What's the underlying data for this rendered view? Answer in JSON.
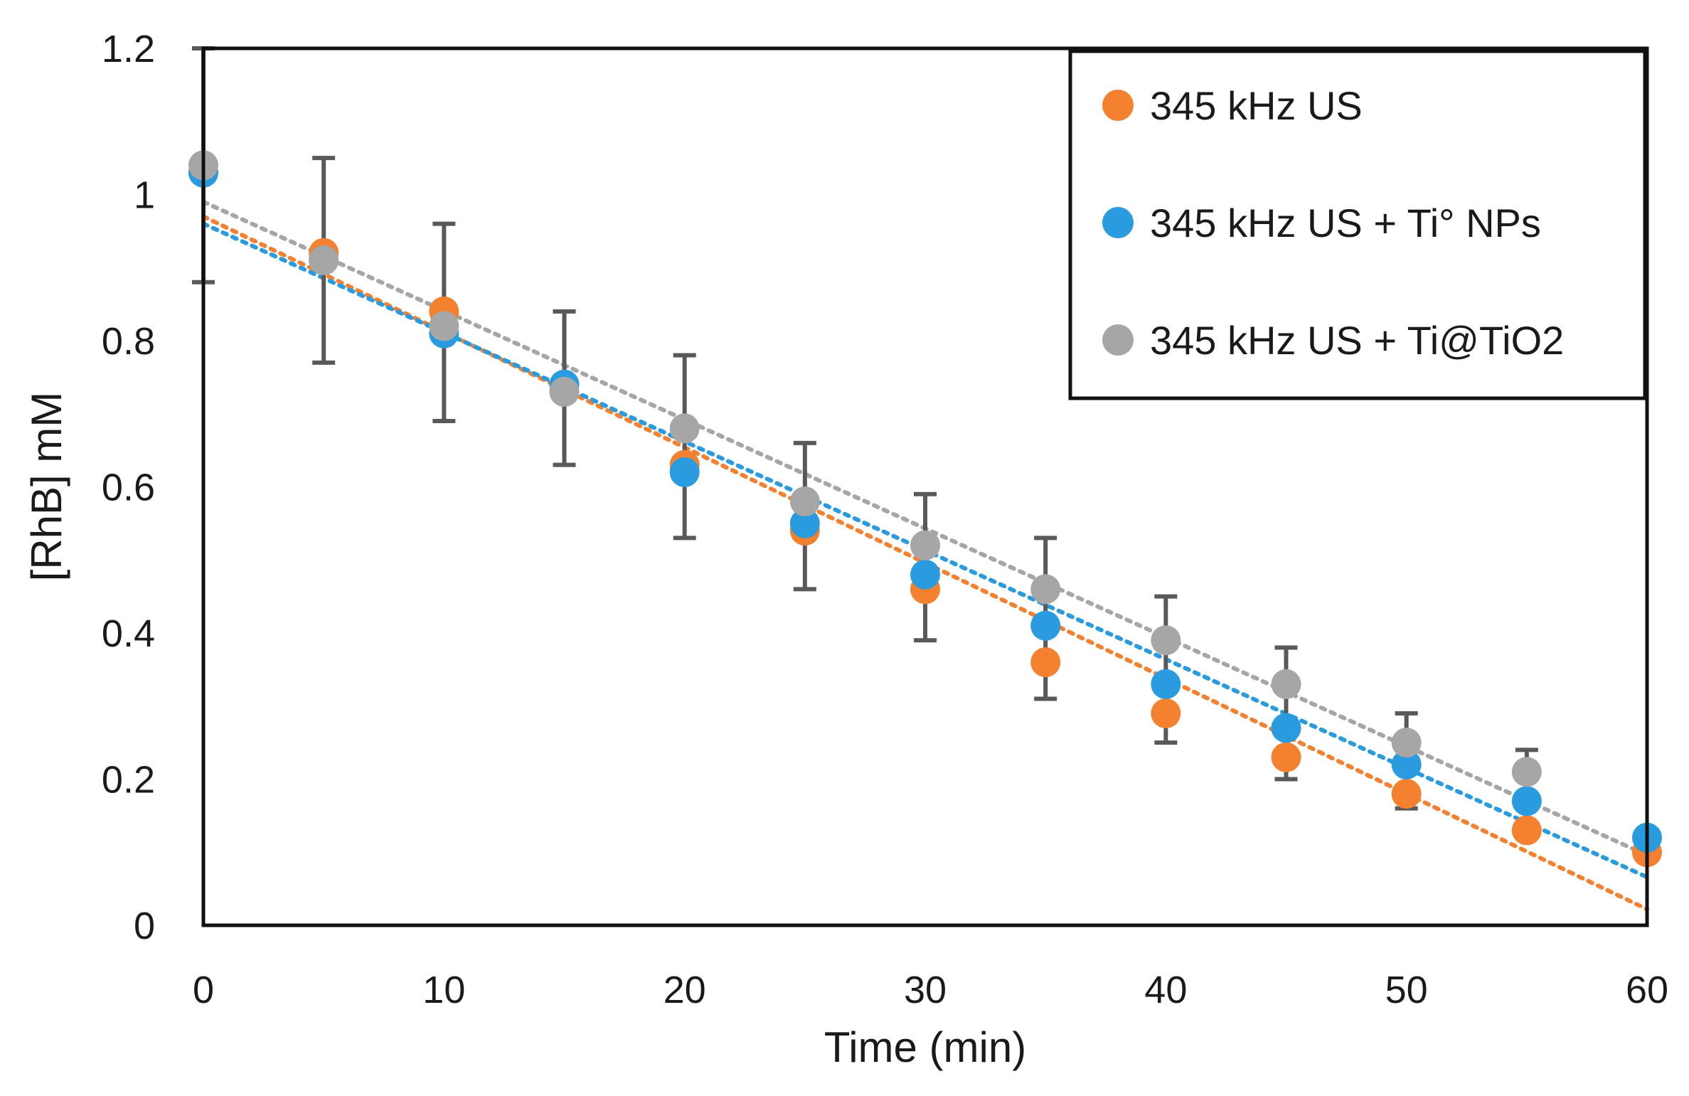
{
  "chart_data": {
    "type": "scatter",
    "title": "",
    "xlabel": "Time (min)",
    "ylabel": "[RhB] mM",
    "xlim": [
      0,
      60
    ],
    "ylim": [
      0,
      1.2
    ],
    "xticks": [
      "0",
      "10",
      "20",
      "30",
      "40",
      "50",
      "60"
    ],
    "yticks": [
      "0",
      "0.2",
      "0.4",
      "0.6",
      "0.8",
      "1",
      "1.2"
    ],
    "grid": false,
    "legend_position": "top-right",
    "series": [
      {
        "name": "345 kHz US",
        "color": "#f4812f",
        "x": [
          0,
          5,
          10,
          15,
          20,
          25,
          30,
          35,
          40,
          45,
          50,
          55,
          60
        ],
        "y": [
          1.03,
          0.92,
          0.84,
          0.73,
          0.63,
          0.54,
          0.46,
          0.36,
          0.29,
          0.23,
          0.18,
          0.13,
          0.1
        ],
        "trend": [
          0.97,
          -0.0158
        ]
      },
      {
        "name": "345 kHz US + Ti° NPs",
        "color": "#2b9be0",
        "x": [
          0,
          5,
          10,
          15,
          20,
          25,
          30,
          35,
          40,
          45,
          50,
          55,
          60
        ],
        "y": [
          1.03,
          0.91,
          0.81,
          0.74,
          0.62,
          0.55,
          0.48,
          0.41,
          0.33,
          0.27,
          0.22,
          0.17,
          0.12
        ],
        "trend": [
          0.96,
          -0.0149
        ]
      },
      {
        "name": "345 kHz US + Ti@TiO2",
        "color": "#a6a6a6",
        "x": [
          0,
          5,
          10,
          15,
          20,
          25,
          30,
          35,
          40,
          45,
          50,
          55
        ],
        "y": [
          1.04,
          0.91,
          0.82,
          0.73,
          0.68,
          0.58,
          0.52,
          0.46,
          0.39,
          0.33,
          0.25,
          0.21
        ],
        "trend": [
          0.99,
          -0.0149
        ]
      }
    ],
    "error_bars": {
      "x": [
        0,
        5,
        10,
        15,
        20,
        25,
        30,
        35,
        40,
        45,
        50,
        55
      ],
      "low": [
        0.88,
        0.77,
        0.69,
        0.63,
        0.53,
        0.46,
        0.39,
        0.31,
        0.25,
        0.2,
        0.16,
        0.13
      ],
      "high": [
        1.2,
        1.05,
        0.96,
        0.84,
        0.78,
        0.66,
        0.59,
        0.53,
        0.45,
        0.38,
        0.29,
        0.24
      ]
    }
  }
}
